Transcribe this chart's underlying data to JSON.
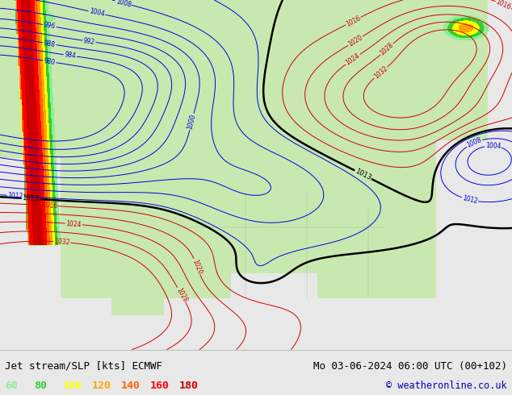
{
  "title_left": "Jet stream/SLP [kts] ECMWF",
  "title_right": "Mo 03-06-2024 06:00 UTC (00+102)",
  "copyright": "© weatheronline.co.uk",
  "legend_values": [
    "60",
    "80",
    "100",
    "120",
    "140",
    "160",
    "180"
  ],
  "legend_colors": [
    "#90ee90",
    "#32cd32",
    "#ffff00",
    "#ffa500",
    "#ff6600",
    "#ff0000",
    "#cc0000"
  ],
  "bg_color": "#e8e8e8",
  "land_color": "#c8e8b0",
  "water_color": "#e8e8e8",
  "jet_levels": [
    60,
    80,
    100,
    120,
    140,
    160,
    180,
    220
  ],
  "jet_fill_colors": [
    "#90ee90",
    "#32cd32",
    "#ffff00",
    "#ffa500",
    "#ff6600",
    "#ff0000",
    "#cc0000"
  ],
  "slp_blue_levels": [
    980,
    984,
    988,
    992,
    996,
    1000,
    1004,
    1008,
    1012
  ],
  "slp_red_levels": [
    1016,
    1020,
    1024,
    1028,
    1032
  ],
  "slp_black_level": 1013,
  "figsize": [
    6.34,
    4.9
  ],
  "dpi": 100
}
